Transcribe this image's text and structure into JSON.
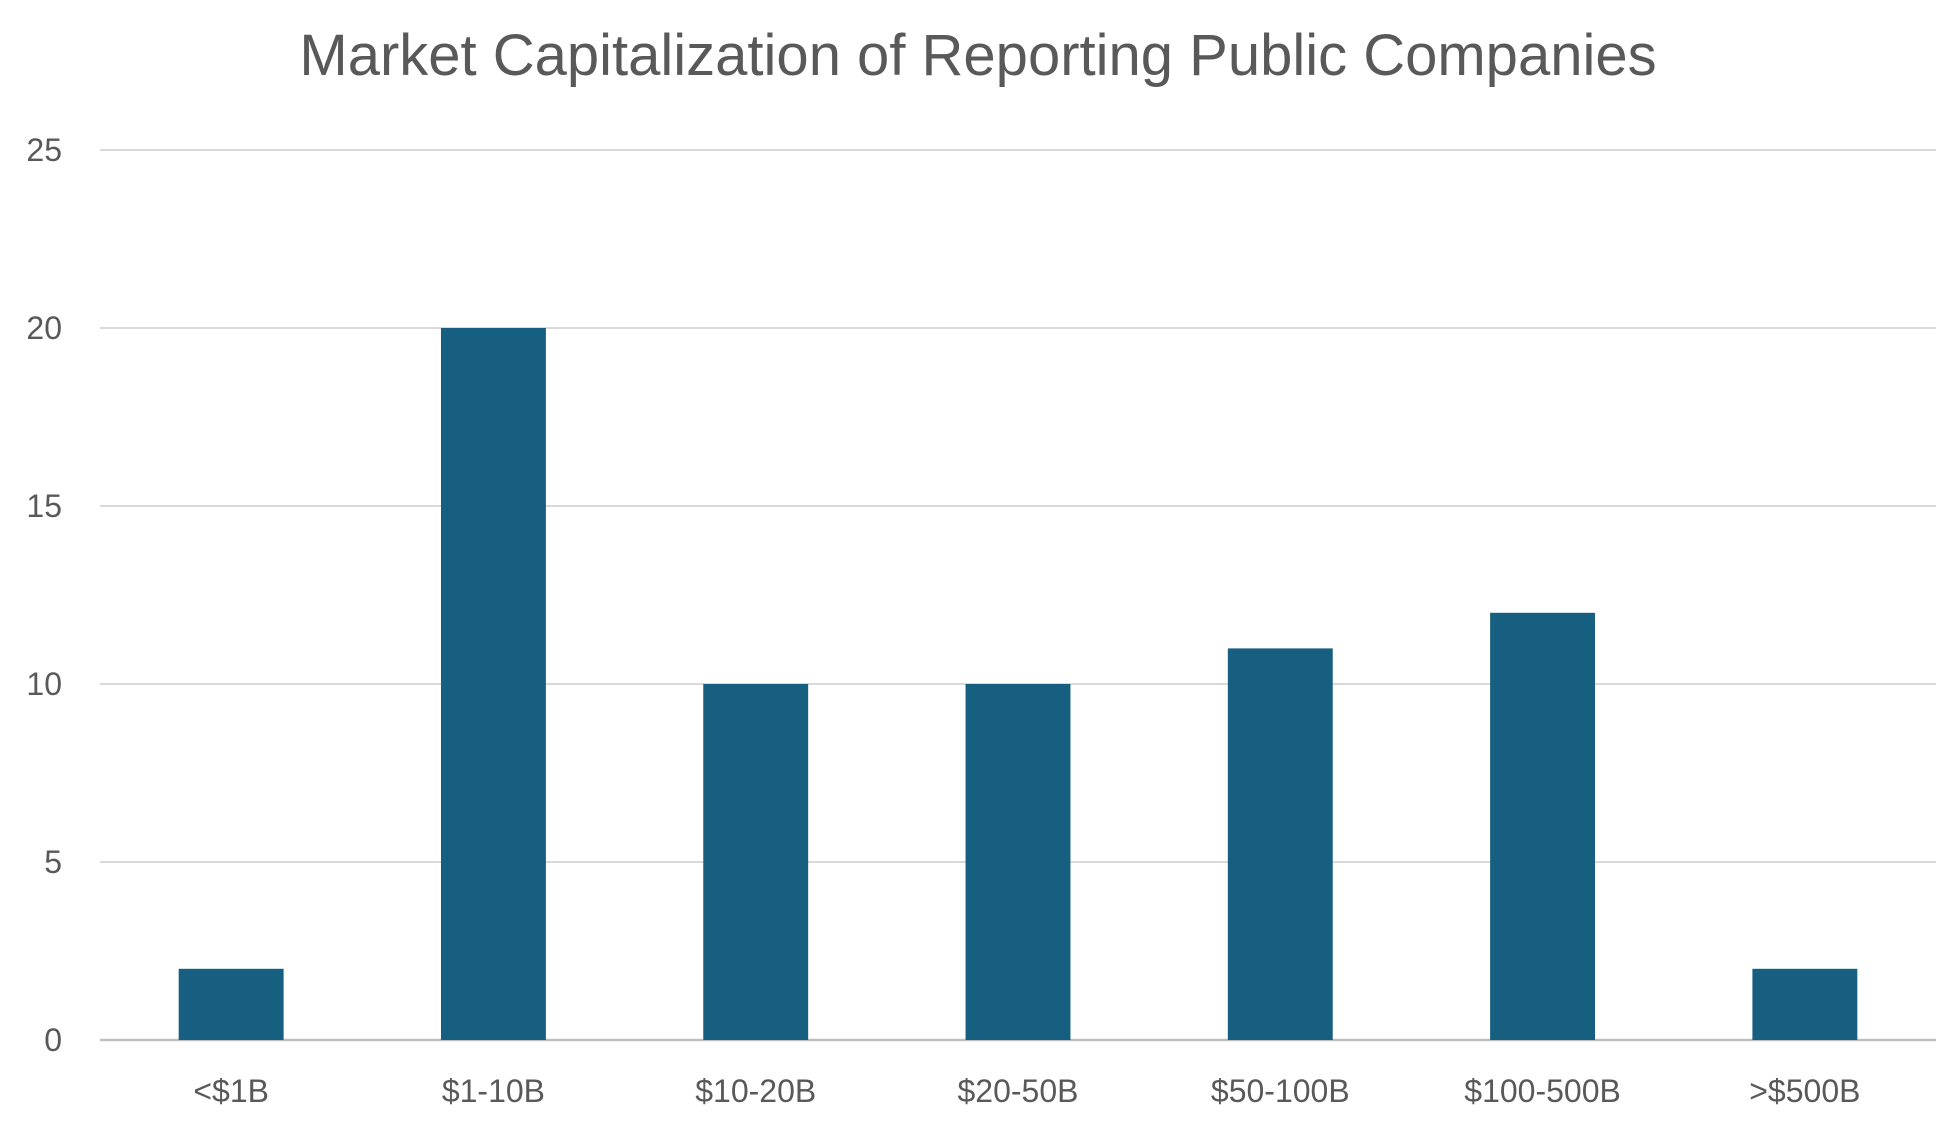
{
  "chart_data": {
    "type": "bar",
    "title": "Market Capitalization of Reporting Public Companies",
    "xlabel": "",
    "ylabel": "",
    "categories": [
      "<$1B",
      "$1-10B",
      "$10-20B",
      "$20-50B",
      "$50-100B",
      "$100-500B",
      ">$500B"
    ],
    "values": [
      2,
      20,
      10,
      10,
      11,
      12,
      2
    ],
    "ylim": [
      0,
      25
    ],
    "yticks": [
      0,
      5,
      10,
      15,
      20,
      25
    ],
    "grid": true,
    "legend": "none",
    "colors": {
      "bar": "#175F80",
      "grid": "#D9D9D9",
      "axis": "#BFBFBF",
      "text": "#595959"
    }
  }
}
